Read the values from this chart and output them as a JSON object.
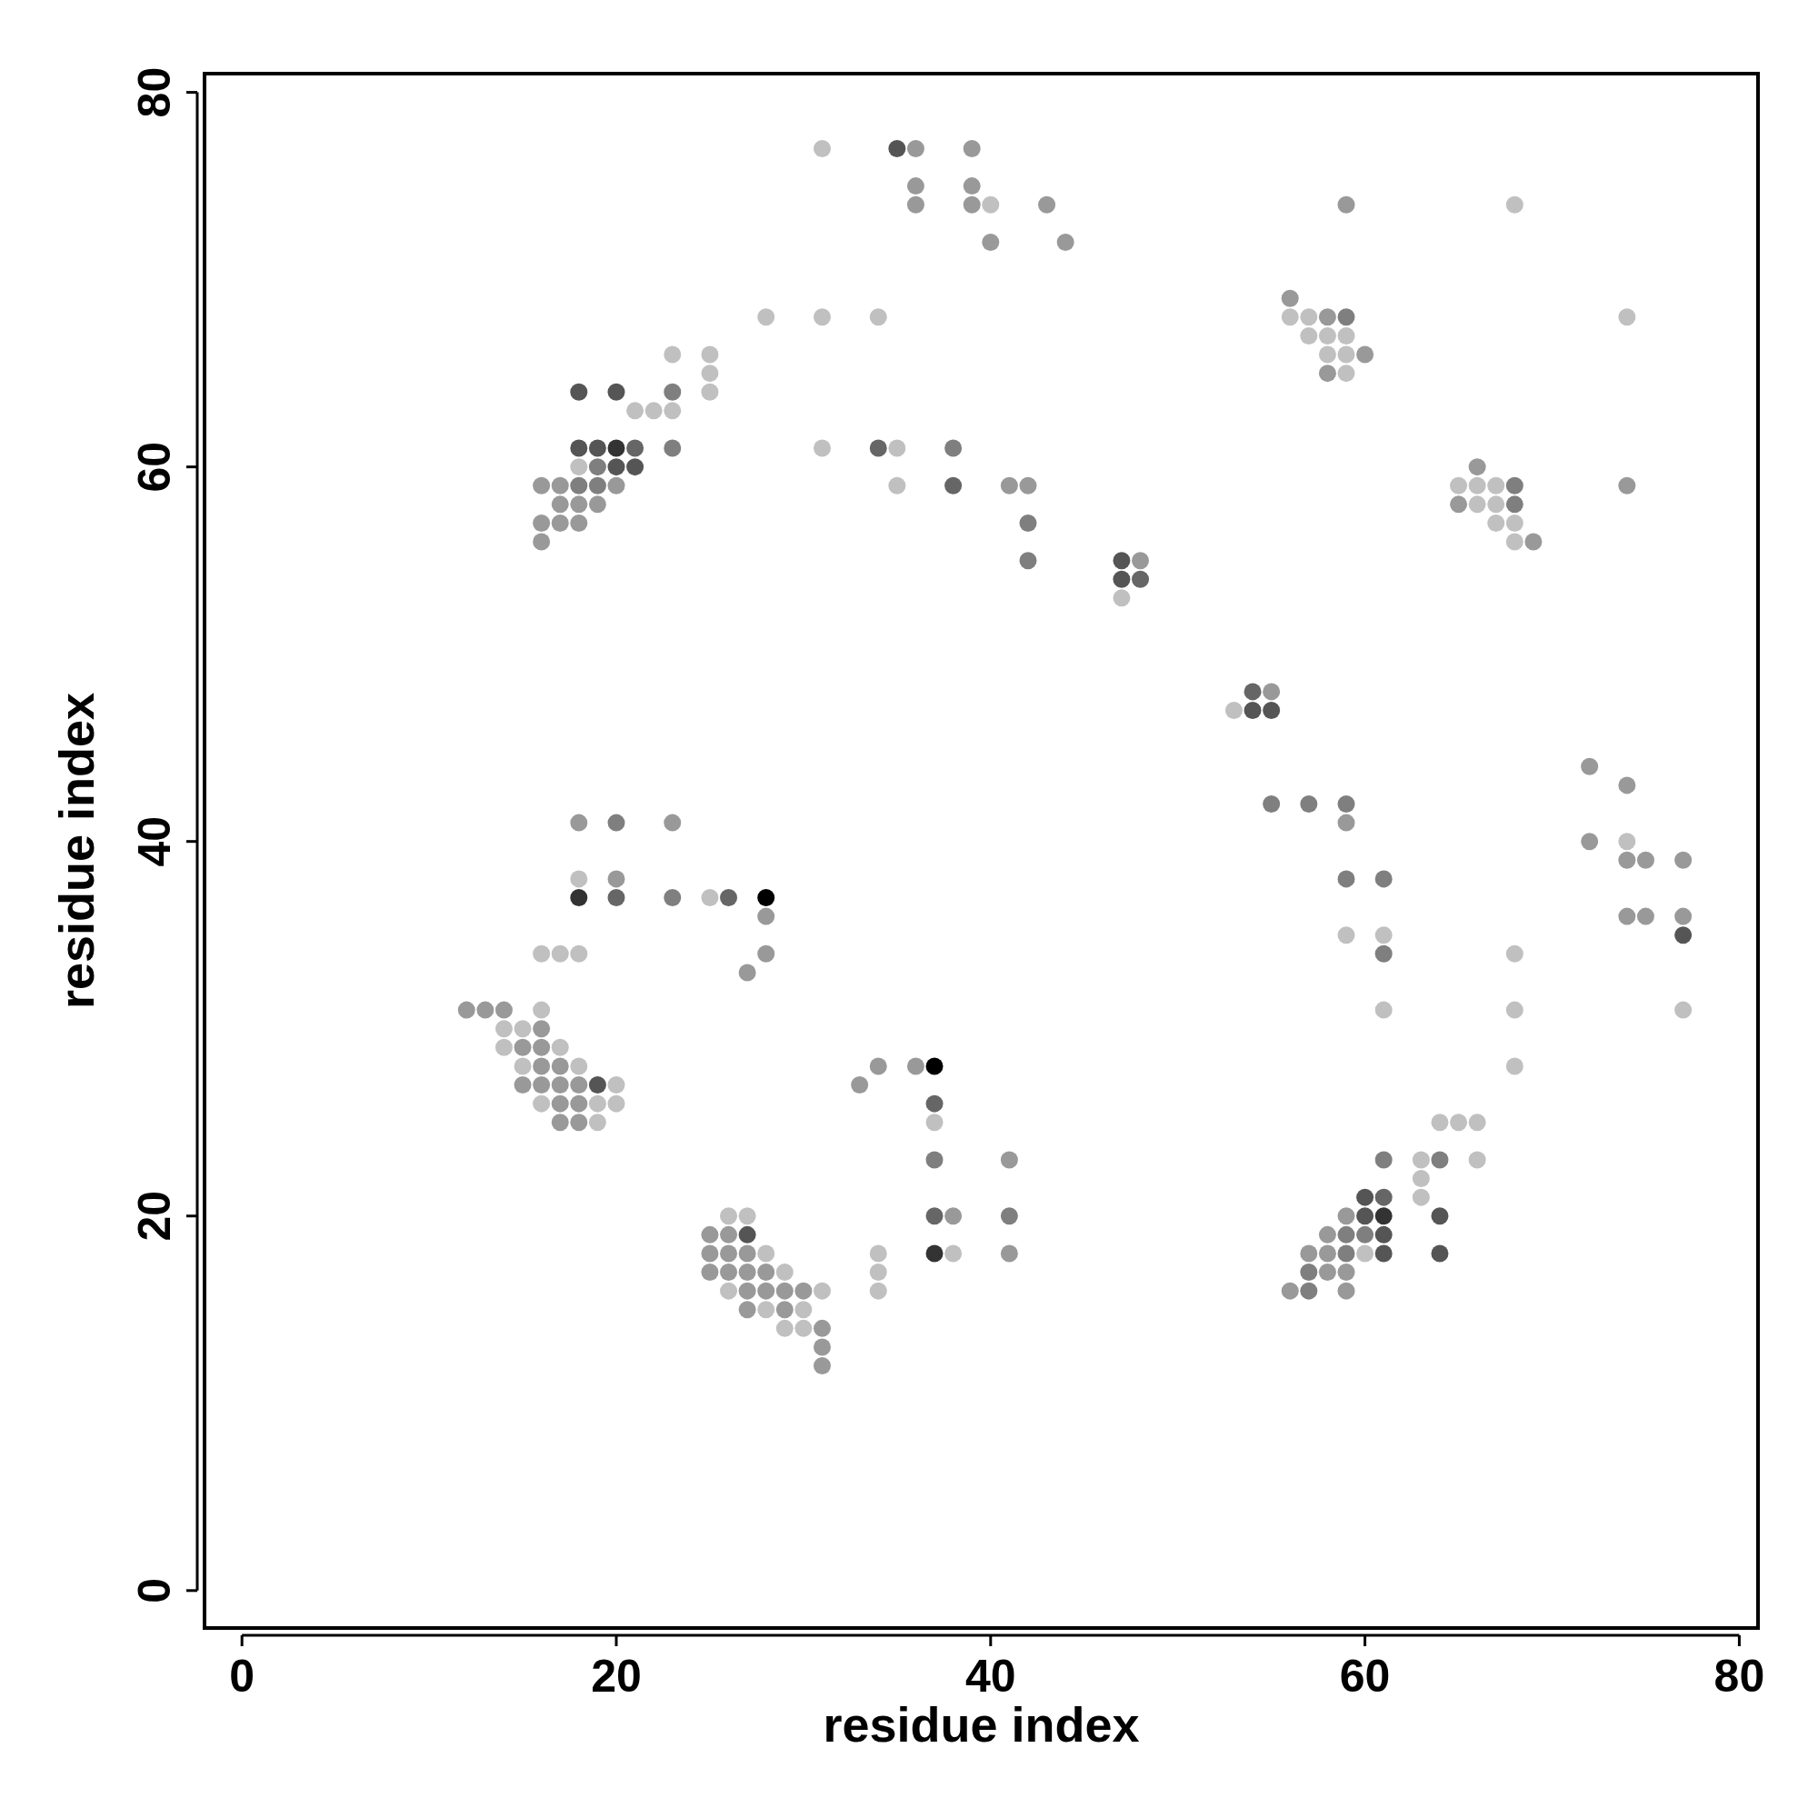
{
  "chart_data": {
    "type": "scatter",
    "xlabel": "residue index",
    "ylabel": "residue index",
    "xlim": [
      -2,
      81
    ],
    "ylim": [
      -2,
      81
    ],
    "xticks": [
      0,
      20,
      40,
      60,
      80
    ],
    "yticks": [
      0,
      20,
      40,
      60,
      80
    ],
    "x": [
      31,
      35,
      36,
      39,
      36,
      39,
      36,
      39,
      40,
      43,
      59,
      68,
      40,
      44,
      56,
      28,
      31,
      34,
      56,
      57,
      58,
      59,
      74,
      57,
      58,
      59,
      23,
      25,
      58,
      59,
      60,
      25,
      58,
      59,
      18,
      20,
      23,
      25,
      21,
      22,
      23,
      18,
      19,
      20,
      21,
      23,
      31,
      34,
      35,
      38,
      18,
      19,
      20,
      21,
      66,
      16,
      17,
      18,
      19,
      20,
      35,
      38,
      41,
      42,
      65,
      66,
      67,
      68,
      74,
      17,
      18,
      19,
      65,
      66,
      67,
      68,
      16,
      17,
      18,
      42,
      67,
      68,
      16,
      68,
      69,
      42,
      47,
      48,
      47,
      48,
      47,
      54,
      55,
      53,
      54,
      55,
      72,
      74,
      55,
      57,
      59,
      18,
      20,
      23,
      59,
      72,
      74,
      74,
      75,
      77,
      18,
      20,
      59,
      61,
      18,
      20,
      23,
      25,
      26,
      28,
      28,
      74,
      75,
      77,
      59,
      61,
      77,
      16,
      17,
      18,
      28,
      61,
      68,
      27,
      12,
      13,
      14,
      16,
      61,
      68,
      77,
      14,
      15,
      16,
      14,
      15,
      16,
      17,
      15,
      16,
      17,
      18,
      34,
      36,
      37,
      68,
      15,
      16,
      17,
      18,
      19,
      20,
      33,
      16,
      17,
      18,
      19,
      20,
      37,
      17,
      18,
      19,
      37,
      64,
      65,
      66,
      37,
      41,
      61,
      63,
      64,
      66,
      63,
      60,
      61,
      63,
      26,
      27,
      37,
      38,
      41,
      59,
      60,
      61,
      64,
      25,
      26,
      27,
      58,
      59,
      60,
      61,
      25,
      26,
      27,
      28,
      34,
      37,
      38,
      41,
      57,
      58,
      59,
      60,
      61,
      64,
      25,
      26,
      27,
      28,
      29,
      34,
      57,
      58,
      59,
      26,
      27,
      28,
      29,
      30,
      31,
      34,
      56,
      57,
      59,
      27,
      28,
      29,
      30,
      29,
      30,
      31,
      31,
      31
    ],
    "values": [
      77,
      77,
      77,
      77,
      75,
      75,
      74,
      74,
      74,
      74,
      74,
      74,
      72,
      72,
      69,
      68,
      68,
      68,
      68,
      68,
      68,
      68,
      68,
      67,
      67,
      67,
      66,
      66,
      66,
      66,
      66,
      65,
      65,
      65,
      64,
      64,
      64,
      64,
      63,
      63,
      63,
      61,
      61,
      61,
      61,
      61,
      61,
      61,
      61,
      61,
      60,
      60,
      60,
      60,
      60,
      59,
      59,
      59,
      59,
      59,
      59,
      59,
      59,
      59,
      59,
      59,
      59,
      59,
      59,
      58,
      58,
      58,
      58,
      58,
      58,
      58,
      57,
      57,
      57,
      57,
      57,
      57,
      56,
      56,
      56,
      55,
      55,
      55,
      54,
      54,
      53,
      48,
      48,
      47,
      47,
      47,
      44,
      43,
      42,
      42,
      42,
      41,
      41,
      41,
      41,
      40,
      40,
      39,
      39,
      39,
      38,
      38,
      38,
      38,
      37,
      37,
      37,
      37,
      37,
      37,
      36,
      36,
      36,
      36,
      35,
      35,
      35,
      34,
      34,
      34,
      34,
      34,
      34,
      33,
      31,
      31,
      31,
      31,
      31,
      31,
      31,
      30,
      30,
      30,
      29,
      29,
      29,
      29,
      28,
      28,
      28,
      28,
      28,
      28,
      28,
      28,
      27,
      27,
      27,
      27,
      27,
      27,
      27,
      26,
      26,
      26,
      26,
      26,
      26,
      25,
      25,
      25,
      25,
      25,
      25,
      25,
      23,
      23,
      23,
      23,
      23,
      23,
      22,
      21,
      21,
      21,
      20,
      20,
      20,
      20,
      20,
      20,
      20,
      20,
      20,
      19,
      19,
      19,
      19,
      19,
      19,
      19,
      18,
      18,
      18,
      18,
      18,
      18,
      18,
      18,
      18,
      18,
      18,
      18,
      18,
      18,
      17,
      17,
      17,
      17,
      17,
      17,
      17,
      17,
      17,
      16,
      16,
      16,
      16,
      16,
      16,
      16,
      16,
      16,
      16,
      15,
      15,
      15,
      15,
      14,
      14,
      14,
      13,
      12
    ],
    "colors": [
      "#c0c0c0",
      "#555555",
      "#999999",
      "#999999",
      "#999999",
      "#999999",
      "#999999",
      "#999999",
      "#c0c0c0",
      "#999999",
      "#999999",
      "#c0c0c0",
      "#999999",
      "#999999",
      "#999999",
      "#c0c0c0",
      "#c0c0c0",
      "#c0c0c0",
      "#c0c0c0",
      "#c0c0c0",
      "#999999",
      "#7f7f7f",
      "#c0c0c0",
      "#c0c0c0",
      "#c0c0c0",
      "#c0c0c0",
      "#c0c0c0",
      "#c0c0c0",
      "#c0c0c0",
      "#c0c0c0",
      "#999999",
      "#c0c0c0",
      "#999999",
      "#c0c0c0",
      "#555555",
      "#555555",
      "#7f7f7f",
      "#c0c0c0",
      "#c0c0c0",
      "#c0c0c0",
      "#c0c0c0",
      "#555555",
      "#555555",
      "#333333",
      "#666666",
      "#7f7f7f",
      "#c0c0c0",
      "#666666",
      "#c0c0c0",
      "#7f7f7f",
      "#c0c0c0",
      "#7f7f7f",
      "#555555",
      "#555555",
      "#999999",
      "#999999",
      "#999999",
      "#7f7f7f",
      "#7f7f7f",
      "#999999",
      "#c0c0c0",
      "#666666",
      "#999999",
      "#999999",
      "#c0c0c0",
      "#c0c0c0",
      "#c0c0c0",
      "#7f7f7f",
      "#999999",
      "#999999",
      "#999999",
      "#999999",
      "#999999",
      "#c0c0c0",
      "#c0c0c0",
      "#7f7f7f",
      "#999999",
      "#999999",
      "#999999",
      "#7f7f7f",
      "#c0c0c0",
      "#c0c0c0",
      "#999999",
      "#c0c0c0",
      "#999999",
      "#7f7f7f",
      "#555555",
      "#999999",
      "#555555",
      "#666666",
      "#c0c0c0",
      "#666666",
      "#999999",
      "#c0c0c0",
      "#555555",
      "#555555",
      "#999999",
      "#999999",
      "#7f7f7f",
      "#7f7f7f",
      "#7f7f7f",
      "#999999",
      "#7f7f7f",
      "#999999",
      "#999999",
      "#999999",
      "#c0c0c0",
      "#999999",
      "#999999",
      "#999999",
      "#c0c0c0",
      "#999999",
      "#7f7f7f",
      "#7f7f7f",
      "#333333",
      "#666666",
      "#7f7f7f",
      "#c0c0c0",
      "#666666",
      "#000000",
      "#999999",
      "#999999",
      "#999999",
      "#999999",
      "#c0c0c0",
      "#c0c0c0",
      "#555555",
      "#c0c0c0",
      "#c0c0c0",
      "#c0c0c0",
      "#999999",
      "#7f7f7f",
      "#c0c0c0",
      "#999999",
      "#999999",
      "#999999",
      "#999999",
      "#c0c0c0",
      "#c0c0c0",
      "#c0c0c0",
      "#c0c0c0",
      "#c0c0c0",
      "#c0c0c0",
      "#999999",
      "#c0c0c0",
      "#999999",
      "#999999",
      "#c0c0c0",
      "#c0c0c0",
      "#999999",
      "#999999",
      "#c0c0c0",
      "#999999",
      "#999999",
      "#000000",
      "#c0c0c0",
      "#999999",
      "#999999",
      "#999999",
      "#999999",
      "#555555",
      "#c0c0c0",
      "#999999",
      "#c0c0c0",
      "#999999",
      "#999999",
      "#c0c0c0",
      "#c0c0c0",
      "#666666",
      "#999999",
      "#999999",
      "#c0c0c0",
      "#c0c0c0",
      "#c0c0c0",
      "#c0c0c0",
      "#c0c0c0",
      "#7f7f7f",
      "#999999",
      "#7f7f7f",
      "#c0c0c0",
      "#7f7f7f",
      "#c0c0c0",
      "#c0c0c0",
      "#555555",
      "#666666",
      "#c0c0c0",
      "#c0c0c0",
      "#c0c0c0",
      "#666666",
      "#999999",
      "#7f7f7f",
      "#999999",
      "#555555",
      "#333333",
      "#555555",
      "#999999",
      "#999999",
      "#555555",
      "#999999",
      "#7f7f7f",
      "#7f7f7f",
      "#555555",
      "#999999",
      "#999999",
      "#999999",
      "#c0c0c0",
      "#c0c0c0",
      "#333333",
      "#c0c0c0",
      "#999999",
      "#999999",
      "#999999",
      "#7f7f7f",
      "#c0c0c0",
      "#555555",
      "#555555",
      "#999999",
      "#999999",
      "#999999",
      "#999999",
      "#c0c0c0",
      "#c0c0c0",
      "#7f7f7f",
      "#999999",
      "#999999",
      "#c0c0c0",
      "#999999",
      "#999999",
      "#999999",
      "#999999",
      "#c0c0c0",
      "#c0c0c0",
      "#999999",
      "#7f7f7f",
      "#999999",
      "#999999",
      "#c0c0c0",
      "#999999",
      "#c0c0c0",
      "#c0c0c0",
      "#c0c0c0",
      "#999999",
      "#999999",
      "#999999"
    ]
  }
}
